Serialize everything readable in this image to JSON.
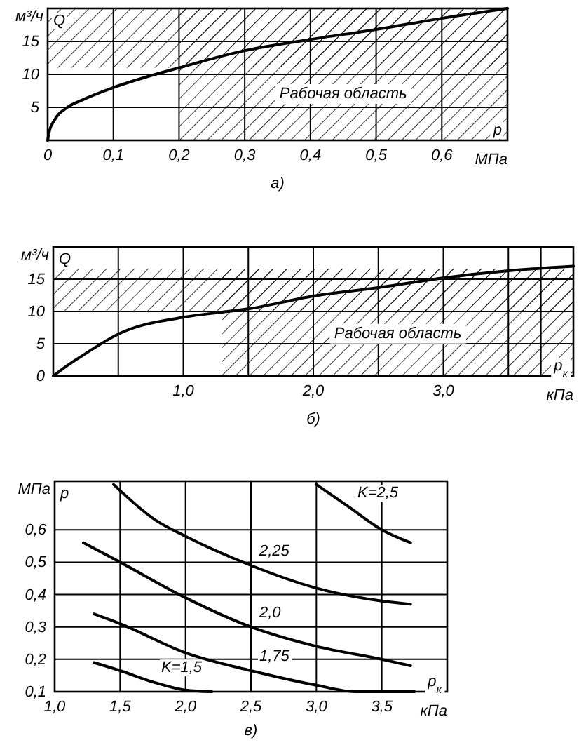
{
  "chart_data": [
    {
      "type": "line",
      "title": "а)",
      "xlabel": "МПа",
      "ylabel": "м³/ч",
      "annotations": [
        "Q",
        "р"
      ],
      "xlim": [
        0,
        0.7
      ],
      "ylim": [
        0,
        20
      ],
      "xticks": [
        0,
        {
          "value": 0.1,
          "label": "0,1"
        },
        {
          "value": 0.2,
          "label": "0,2"
        },
        {
          "value": 0.3,
          "label": "0,3"
        },
        {
          "value": 0.4,
          "label": "0,4"
        },
        {
          "value": 0.5,
          "label": "0,5"
        },
        {
          "value": 0.6,
          "label": "0,6"
        }
      ],
      "yticks": [
        5,
        10,
        15
      ],
      "grid": true,
      "bands": [
        {
          "axis": "x",
          "from": 0.2,
          "to": 0.7,
          "label": "Рабочая область"
        },
        {
          "axis": "y",
          "from": 11,
          "to": 20
        }
      ],
      "series": [
        {
          "color": "#000000",
          "x": [
            0,
            0.003,
            0.01,
            0.03,
            0.05,
            0.1,
            0.15,
            0.2,
            0.3,
            0.4,
            0.5,
            0.6,
            0.7
          ],
          "values": [
            0,
            1.5,
            3,
            5,
            6,
            8,
            9.6,
            11,
            13.6,
            15.3,
            16.8,
            18.5,
            20
          ]
        }
      ]
    },
    {
      "type": "line",
      "title": "б)",
      "xlabel": "кПа",
      "ylabel": "м³/ч",
      "annotations": [
        "Q",
        "р$_{к}$"
      ],
      "xlim": [
        0,
        4
      ],
      "ylim": [
        0,
        20
      ],
      "xticks": [
        {
          "value": 0.5,
          "label": null
        },
        {
          "value": 1,
          "label": "1,0"
        },
        {
          "value": 1.5,
          "label": null
        },
        {
          "value": 2,
          "label": "2,0"
        },
        {
          "value": 2.5,
          "label": null
        },
        {
          "value": 3,
          "label": "3,0"
        },
        {
          "value": 3.5,
          "label": null
        },
        {
          "value": 3.75,
          "label": null
        }
      ],
      "yticks": [
        0,
        5,
        10,
        15
      ],
      "grid": true,
      "bands": [
        {
          "axis": "x",
          "from": 1.3,
          "to": 4,
          "label": "Рабочая область"
        },
        {
          "axis": "y",
          "from": 10,
          "to": 16.6
        }
      ],
      "series": [
        {
          "color": "#000000",
          "x": [
            0,
            0.1,
            0.25,
            0.5,
            1,
            1.3,
            1.5,
            2,
            2.5,
            3,
            3.5,
            4
          ],
          "values": [
            0,
            1.5,
            3.5,
            6.5,
            9.1,
            9.9,
            10.4,
            12.4,
            13.7,
            15.2,
            16.3,
            17
          ]
        }
      ]
    },
    {
      "type": "line",
      "title": "в)",
      "xlabel": "кПа",
      "ylabel": "МПа",
      "annotations": [
        "р",
        "р$_{к}$"
      ],
      "xlim": [
        1,
        4
      ],
      "ylim": [
        0.1,
        0.75
      ],
      "xticks": [
        {
          "value": 1,
          "label": "1,0"
        },
        {
          "value": 1.5,
          "label": "1,5"
        },
        {
          "value": 2,
          "label": "2,0"
        },
        {
          "value": 2.5,
          "label": "2,5"
        },
        {
          "value": 3,
          "label": "3,0"
        },
        {
          "value": 3.5,
          "label": "3,5"
        }
      ],
      "yticks": [
        {
          "value": 0.1,
          "label": "0,1"
        },
        {
          "value": 0.2,
          "label": "0,2"
        },
        {
          "value": 0.3,
          "label": "0,3"
        },
        {
          "value": 0.4,
          "label": "0,4"
        },
        {
          "value": 0.5,
          "label": "0,5"
        },
        {
          "value": 0.6,
          "label": "0,6"
        }
      ],
      "grid": true,
      "series": [
        {
          "name": "K=1,5",
          "color": "#000000",
          "x": [
            1.3,
            1.5,
            1.75,
            2.0,
            2.2
          ],
          "values": [
            0.19,
            0.165,
            0.13,
            0.105,
            0.1
          ]
        },
        {
          "name": "1,75",
          "color": "#000000",
          "x": [
            1.3,
            1.5,
            2.0,
            2.5,
            3.0,
            3.3,
            3.75
          ],
          "values": [
            0.34,
            0.31,
            0.22,
            0.165,
            0.12,
            0.1,
            0.1
          ]
        },
        {
          "name": "2,0",
          "color": "#000000",
          "x": [
            1.22,
            1.5,
            2.0,
            2.5,
            3.0,
            3.5,
            3.72
          ],
          "values": [
            0.56,
            0.5,
            0.39,
            0.3,
            0.24,
            0.2,
            0.18
          ]
        },
        {
          "name": "2,25",
          "color": "#000000",
          "x": [
            1.45,
            1.77,
            2.0,
            2.5,
            3.0,
            3.5,
            3.72
          ],
          "values": [
            0.74,
            0.63,
            0.58,
            0.49,
            0.42,
            0.38,
            0.37
          ]
        },
        {
          "name": "K=2,5",
          "color": "#000000",
          "x": [
            3.0,
            3.25,
            3.5,
            3.72
          ],
          "values": [
            0.74,
            0.67,
            0.6,
            0.56
          ]
        }
      ]
    }
  ]
}
